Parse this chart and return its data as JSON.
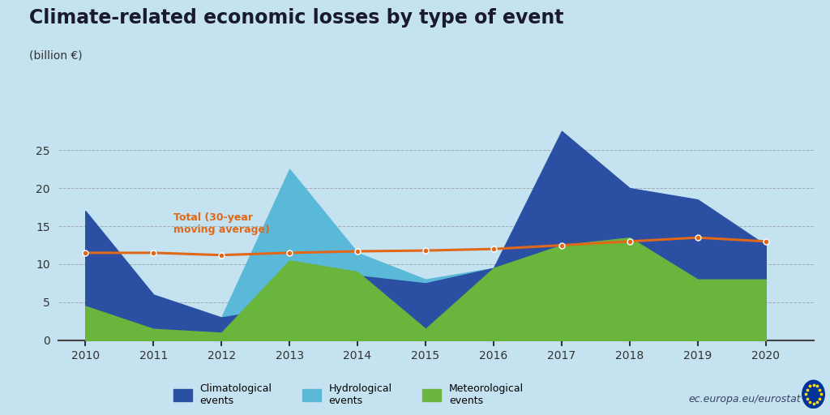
{
  "title": "Climate-related economic losses by type of event",
  "subtitle": "(billion €)",
  "years": [
    2010,
    2011,
    2012,
    2013,
    2014,
    2015,
    2016,
    2017,
    2018,
    2019,
    2020
  ],
  "climatological": [
    17.0,
    6.0,
    3.0,
    4.5,
    8.5,
    7.5,
    9.5,
    27.5,
    20.0,
    18.5,
    12.5
  ],
  "hydrological": [
    17.0,
    6.0,
    3.0,
    22.5,
    11.5,
    8.0,
    9.5,
    15.5,
    15.5,
    14.0,
    12.5
  ],
  "meteorological": [
    4.5,
    1.5,
    1.0,
    10.5,
    9.0,
    1.5,
    9.5,
    12.5,
    13.5,
    8.0,
    8.0
  ],
  "moving_avg": [
    11.5,
    11.5,
    11.2,
    11.5,
    11.7,
    11.8,
    12.0,
    12.5,
    13.0,
    13.5,
    13.0
  ],
  "clim_color": "#2b4fa3",
  "hydro_color": "#5ab8d8",
  "meteo_color": "#6ab53c",
  "mavg_color": "#e06818",
  "bg_color": "#c5e2f0",
  "axis_bg": "#c5e2f0",
  "grid_color": "#888888",
  "text_color": "#1a1a2e",
  "ylim": [
    0,
    30
  ],
  "yticks": [
    0,
    5,
    10,
    15,
    20,
    25
  ],
  "title_fontsize": 17,
  "subtitle_fontsize": 10,
  "axis_fontsize": 10,
  "legend_fontsize": 9,
  "moving_avg_label": "Total (30-year\nmoving average)",
  "legend_labels": [
    "Climatological\nevents",
    "Hydrological\nevents",
    "Meteorological\nevents"
  ],
  "watermark": "ec.europa.eu/eurostat"
}
